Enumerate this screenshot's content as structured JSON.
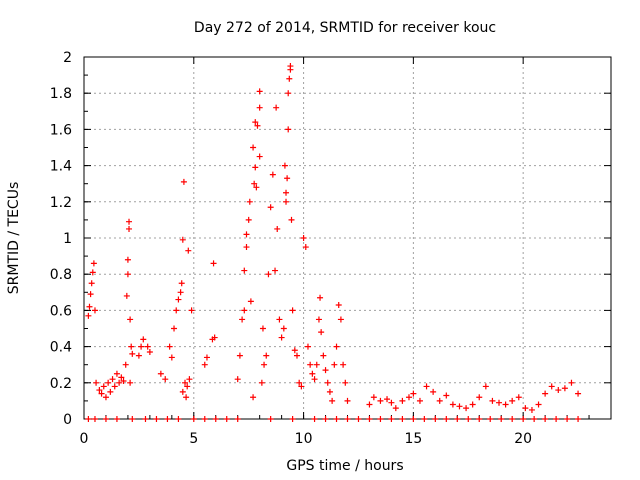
{
  "chart_data": {
    "type": "scatter",
    "title": "Day 272 of 2014, SRMTID for receiver kouc",
    "xlabel": "GPS time / hours",
    "ylabel": "SRMTID / TECUs",
    "xlim": [
      0,
      24
    ],
    "ylim": [
      0,
      2
    ],
    "grid": true,
    "marker": "+",
    "color": "#ff0000",
    "x_ticks": [
      0,
      5,
      10,
      15,
      20
    ],
    "y_ticks": [
      0,
      0.2,
      0.4,
      0.6,
      0.8,
      1,
      1.2,
      1.4,
      1.6,
      1.8,
      2
    ],
    "x_tick_labels": [
      "0",
      "5",
      "10",
      "15",
      "20"
    ],
    "y_tick_labels": [
      "0",
      "0.2",
      "0.4",
      "0.6",
      "0.8",
      "1",
      "1.2",
      "1.4",
      "1.6",
      "1.8",
      "2"
    ],
    "series": [
      {
        "name": "SRMTID",
        "points": [
          [
            0.2,
            0.57
          ],
          [
            0.25,
            0.62
          ],
          [
            0.3,
            0.69
          ],
          [
            0.35,
            0.75
          ],
          [
            0.4,
            0.81
          ],
          [
            0.45,
            0.86
          ],
          [
            0.5,
            0.6
          ],
          [
            0.55,
            0.2
          ],
          [
            0.7,
            0.16
          ],
          [
            0.8,
            0.14
          ],
          [
            0.9,
            0.18
          ],
          [
            1.0,
            0.12
          ],
          [
            1.1,
            0.2
          ],
          [
            1.2,
            0.15
          ],
          [
            1.3,
            0.22
          ],
          [
            1.4,
            0.18
          ],
          [
            1.5,
            0.25
          ],
          [
            1.6,
            0.2
          ],
          [
            1.7,
            0.23
          ],
          [
            1.8,
            0.21
          ],
          [
            1.9,
            0.3
          ],
          [
            1.95,
            0.68
          ],
          [
            2.0,
            0.8
          ],
          [
            2.0,
            0.88
          ],
          [
            2.05,
            1.09
          ],
          [
            2.05,
            1.05
          ],
          [
            2.1,
            0.55
          ],
          [
            2.15,
            0.4
          ],
          [
            2.2,
            0.36
          ],
          [
            2.1,
            0.2
          ],
          [
            2.5,
            0.35
          ],
          [
            2.6,
            0.4
          ],
          [
            2.7,
            0.44
          ],
          [
            2.9,
            0.4
          ],
          [
            3.0,
            0.37
          ],
          [
            3.5,
            0.25
          ],
          [
            3.7,
            0.22
          ],
          [
            3.9,
            0.4
          ],
          [
            4.0,
            0.34
          ],
          [
            4.1,
            0.5
          ],
          [
            4.2,
            0.6
          ],
          [
            4.3,
            0.66
          ],
          [
            4.4,
            0.7
          ],
          [
            4.45,
            0.75
          ],
          [
            4.5,
            0.99
          ],
          [
            4.55,
            1.31
          ],
          [
            4.6,
            0.2
          ],
          [
            4.7,
            0.18
          ],
          [
            4.8,
            0.22
          ],
          [
            4.9,
            0.6
          ],
          [
            4.75,
            0.93
          ],
          [
            4.5,
            0.15
          ],
          [
            4.65,
            0.12
          ],
          [
            5.5,
            0.3
          ],
          [
            5.6,
            0.34
          ],
          [
            5.9,
            0.86
          ],
          [
            5.85,
            0.44
          ],
          [
            5.95,
            0.45
          ],
          [
            7.0,
            0.22
          ],
          [
            7.1,
            0.35
          ],
          [
            7.2,
            0.55
          ],
          [
            7.3,
            0.6
          ],
          [
            7.3,
            0.82
          ],
          [
            7.4,
            0.95
          ],
          [
            7.4,
            1.02
          ],
          [
            7.5,
            1.1
          ],
          [
            7.55,
            1.2
          ],
          [
            7.6,
            0.65
          ],
          [
            7.7,
            0.12
          ],
          [
            7.75,
            1.3
          ],
          [
            7.7,
            1.5
          ],
          [
            7.8,
            1.64
          ],
          [
            7.8,
            1.39
          ],
          [
            7.9,
            1.62
          ],
          [
            7.85,
            1.28
          ],
          [
            8.0,
            1.81
          ],
          [
            8.0,
            1.72
          ],
          [
            8.0,
            1.45
          ],
          [
            8.1,
            0.2
          ],
          [
            8.15,
            0.5
          ],
          [
            8.2,
            0.3
          ],
          [
            8.3,
            0.35
          ],
          [
            8.4,
            0.8
          ],
          [
            8.5,
            1.17
          ],
          [
            8.6,
            1.35
          ],
          [
            8.7,
            0.82
          ],
          [
            8.75,
            1.72
          ],
          [
            8.8,
            1.05
          ],
          [
            8.9,
            0.55
          ],
          [
            9.0,
            0.45
          ],
          [
            9.1,
            0.5
          ],
          [
            9.15,
            1.4
          ],
          [
            9.2,
            1.2
          ],
          [
            9.2,
            1.25
          ],
          [
            9.25,
            1.33
          ],
          [
            9.3,
            1.6
          ],
          [
            9.3,
            1.8
          ],
          [
            9.35,
            1.88
          ],
          [
            9.4,
            1.93
          ],
          [
            9.4,
            1.95
          ],
          [
            9.45,
            1.1
          ],
          [
            9.5,
            0.6
          ],
          [
            9.6,
            0.38
          ],
          [
            9.7,
            0.35
          ],
          [
            9.8,
            0.2
          ],
          [
            9.9,
            0.18
          ],
          [
            10.0,
            1.0
          ],
          [
            10.1,
            0.95
          ],
          [
            10.2,
            0.4
          ],
          [
            10.3,
            0.3
          ],
          [
            10.4,
            0.25
          ],
          [
            10.5,
            0.22
          ],
          [
            10.6,
            0.3
          ],
          [
            10.7,
            0.55
          ],
          [
            10.75,
            0.67
          ],
          [
            10.8,
            0.48
          ],
          [
            10.9,
            0.35
          ],
          [
            11.0,
            0.27
          ],
          [
            11.1,
            0.2
          ],
          [
            11.2,
            0.15
          ],
          [
            11.3,
            0.1
          ],
          [
            11.4,
            0.3
          ],
          [
            11.5,
            0.4
          ],
          [
            11.6,
            0.63
          ],
          [
            11.7,
            0.55
          ],
          [
            11.8,
            0.3
          ],
          [
            11.9,
            0.2
          ],
          [
            12.0,
            0.1
          ],
          [
            13.0,
            0.08
          ],
          [
            13.2,
            0.12
          ],
          [
            13.5,
            0.1
          ],
          [
            13.8,
            0.11
          ],
          [
            14.0,
            0.09
          ],
          [
            14.2,
            0.06
          ],
          [
            14.5,
            0.1
          ],
          [
            14.8,
            0.12
          ],
          [
            15.0,
            0.14
          ],
          [
            15.3,
            0.1
          ],
          [
            15.6,
            0.18
          ],
          [
            15.9,
            0.15
          ],
          [
            16.2,
            0.1
          ],
          [
            16.5,
            0.13
          ],
          [
            16.8,
            0.08
          ],
          [
            17.1,
            0.07
          ],
          [
            17.4,
            0.06
          ],
          [
            17.7,
            0.08
          ],
          [
            18.0,
            0.12
          ],
          [
            18.3,
            0.18
          ],
          [
            18.6,
            0.1
          ],
          [
            18.9,
            0.09
          ],
          [
            19.2,
            0.08
          ],
          [
            19.5,
            0.1
          ],
          [
            19.8,
            0.12
          ],
          [
            20.1,
            0.06
          ],
          [
            20.4,
            0.05
          ],
          [
            20.7,
            0.08
          ],
          [
            21.0,
            0.14
          ],
          [
            21.3,
            0.18
          ],
          [
            21.6,
            0.16
          ],
          [
            21.9,
            0.17
          ],
          [
            22.2,
            0.2
          ],
          [
            22.5,
            0.14
          ]
        ]
      }
    ],
    "zero_markers_x": [
      0.2,
      0.5,
      1.0,
      1.5,
      2.2,
      2.8,
      3.3,
      3.8,
      4.3,
      5.0,
      5.5,
      6.0,
      6.5,
      7.0,
      8.5,
      9.5,
      10.5,
      11.0,
      11.5,
      12.0,
      12.5,
      13.0,
      13.5,
      14.0,
      14.5,
      15.0,
      15.5,
      16.0,
      16.5,
      17.0,
      17.5,
      18.0,
      18.5,
      19.0,
      19.5,
      20.0,
      20.5,
      21.0,
      21.5,
      22.0,
      22.5
    ]
  }
}
